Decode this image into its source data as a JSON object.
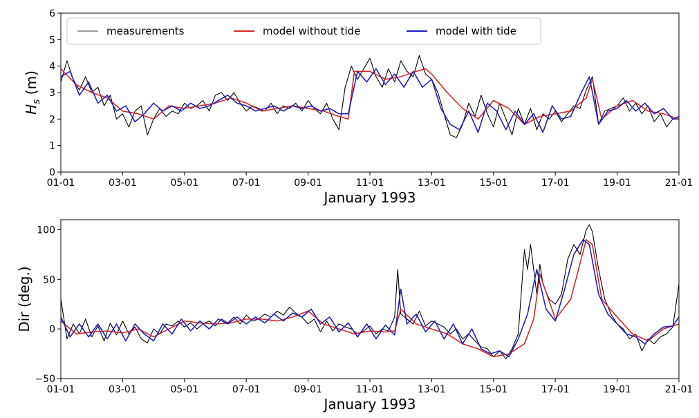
{
  "chart_data": [
    {
      "type": "line",
      "id": "hs",
      "xlabel": "January 1993",
      "ylabel_main": "H",
      "ylabel_sub": "s",
      "ylabel_unit": " (m)",
      "x_unit": "day",
      "x_ticks": [
        1,
        3,
        5,
        7,
        9,
        11,
        13,
        15,
        17,
        19,
        21
      ],
      "x_tick_labels": [
        "01-01",
        "03-01",
        "05-01",
        "07-01",
        "09-01",
        "11-01",
        "13-01",
        "15-01",
        "17-01",
        "19-01",
        "21-01"
      ],
      "xlim": [
        1,
        21
      ],
      "ylim": [
        0,
        6
      ],
      "y_ticks": [
        0,
        1,
        2,
        3,
        4,
        5,
        6
      ],
      "y_tick_labels": [
        "0",
        "1",
        "2",
        "3",
        "4",
        "5",
        "6"
      ],
      "legend": {
        "placement": "top",
        "entries": [
          "measurements",
          "model without tide",
          "model with tide"
        ]
      },
      "series": [
        {
          "name": "measurements",
          "color": "#000000",
          "x": [
            1,
            1.2,
            1.4,
            1.6,
            1.8,
            2,
            2.2,
            2.4,
            2.6,
            2.8,
            3,
            3.2,
            3.4,
            3.6,
            3.8,
            4,
            4.2,
            4.4,
            4.6,
            4.8,
            5,
            5.2,
            5.4,
            5.6,
            5.8,
            6,
            6.2,
            6.4,
            6.6,
            6.8,
            7,
            7.2,
            7.4,
            7.6,
            7.8,
            8,
            8.2,
            8.4,
            8.6,
            8.8,
            9,
            9.2,
            9.4,
            9.6,
            9.8,
            10,
            10.2,
            10.4,
            10.6,
            10.8,
            11,
            11.2,
            11.4,
            11.6,
            11.8,
            12,
            12.2,
            12.4,
            12.6,
            12.8,
            13,
            13.2,
            13.4,
            13.6,
            13.8,
            14,
            14.2,
            14.4,
            14.6,
            14.8,
            15,
            15.2,
            15.4,
            15.6,
            15.8,
            16,
            16.2,
            16.4,
            16.6,
            16.8,
            17,
            17.2,
            17.4,
            17.6,
            17.8,
            18,
            18.2,
            18.4,
            18.6,
            18.8,
            19,
            19.2,
            19.4,
            19.6,
            19.8,
            20,
            20.2,
            20.4,
            20.6,
            20.8,
            21
          ],
          "values": [
            3.4,
            4.2,
            3.5,
            3.1,
            3.6,
            3.0,
            3.2,
            2.5,
            2.9,
            2.0,
            2.2,
            1.7,
            2.3,
            2.5,
            1.4,
            2.0,
            2.4,
            2.1,
            2.3,
            2.2,
            2.6,
            2.4,
            2.5,
            2.7,
            2.3,
            2.9,
            3.0,
            2.7,
            3.0,
            2.6,
            2.3,
            2.5,
            2.4,
            2.3,
            2.6,
            2.2,
            2.5,
            2.4,
            2.6,
            2.3,
            2.7,
            2.4,
            2.2,
            2.6,
            2.0,
            1.6,
            3.2,
            4.0,
            3.5,
            3.9,
            4.3,
            3.6,
            3.2,
            3.9,
            3.4,
            4.2,
            3.8,
            3.6,
            4.4,
            3.7,
            3.5,
            3.0,
            2.2,
            1.4,
            1.3,
            1.8,
            2.6,
            2.1,
            2.9,
            2.2,
            1.7,
            2.6,
            2.0,
            1.4,
            2.4,
            1.8,
            2.4,
            1.6,
            2.2,
            2.0,
            2.3,
            1.9,
            2.2,
            2.5,
            2.4,
            3.1,
            3.6,
            1.8,
            2.3,
            2.4,
            2.5,
            2.8,
            2.3,
            2.6,
            2.2,
            2.5,
            1.9,
            2.2,
            1.7,
            2.0,
            2.0
          ]
        },
        {
          "name": "model without tide",
          "color": "#d62728",
          "x": [
            1,
            1.5,
            2,
            2.5,
            3,
            3.5,
            4,
            4.5,
            5,
            5.5,
            6,
            6.5,
            7,
            7.5,
            8,
            8.5,
            9,
            9.5,
            10,
            10.3,
            10.5,
            11,
            11.5,
            12,
            12.5,
            12.8,
            13,
            13.5,
            14,
            14.5,
            15,
            15.5,
            16,
            16.5,
            17,
            17.5,
            18,
            18.2,
            18.5,
            19,
            19.5,
            20,
            20.5,
            21
          ],
          "values": [
            3.9,
            3.3,
            3.0,
            2.8,
            2.3,
            2.2,
            2.0,
            2.5,
            2.4,
            2.5,
            2.6,
            2.8,
            2.6,
            2.3,
            2.4,
            2.5,
            2.4,
            2.3,
            2.1,
            2.0,
            3.8,
            3.8,
            3.5,
            3.6,
            3.8,
            3.9,
            3.7,
            3.0,
            2.4,
            2.0,
            2.7,
            2.4,
            1.8,
            2.1,
            2.2,
            2.3,
            2.8,
            3.5,
            2.0,
            2.5,
            2.7,
            2.3,
            2.2,
            2.0
          ]
        },
        {
          "name": "model with tide",
          "color": "#1f1fbf",
          "x": [
            1,
            1.3,
            1.6,
            1.9,
            2.2,
            2.5,
            2.8,
            3.1,
            3.4,
            3.7,
            4,
            4.3,
            4.6,
            4.9,
            5.2,
            5.5,
            5.8,
            6.1,
            6.4,
            6.7,
            7,
            7.3,
            7.6,
            7.9,
            8.2,
            8.5,
            8.8,
            9.1,
            9.4,
            9.7,
            10,
            10.3,
            10.6,
            10.9,
            11.2,
            11.5,
            11.8,
            12.1,
            12.4,
            12.7,
            13,
            13.3,
            13.6,
            13.9,
            14.2,
            14.5,
            14.8,
            15.1,
            15.4,
            15.7,
            16,
            16.3,
            16.6,
            16.9,
            17.2,
            17.5,
            17.8,
            18.1,
            18.4,
            18.7,
            19,
            19.3,
            19.6,
            19.9,
            20.2,
            20.5,
            20.8,
            21
          ],
          "values": [
            3.6,
            3.8,
            2.9,
            3.4,
            2.6,
            2.9,
            2.3,
            2.5,
            1.9,
            2.2,
            2.6,
            2.3,
            2.5,
            2.3,
            2.6,
            2.4,
            2.5,
            2.7,
            2.9,
            2.6,
            2.5,
            2.3,
            2.4,
            2.5,
            2.3,
            2.5,
            2.4,
            2.5,
            2.3,
            2.4,
            2.2,
            2.2,
            3.8,
            3.4,
            3.9,
            3.3,
            3.7,
            3.2,
            3.8,
            3.2,
            3.5,
            2.4,
            1.8,
            1.6,
            2.3,
            1.5,
            2.6,
            2.3,
            1.6,
            2.3,
            1.8,
            2.2,
            1.5,
            2.5,
            2.0,
            2.1,
            2.9,
            3.6,
            1.8,
            2.3,
            2.4,
            2.7,
            2.3,
            2.6,
            2.2,
            2.4,
            2.0,
            2.1
          ]
        }
      ]
    },
    {
      "type": "line",
      "id": "dir",
      "xlabel": "January 1993",
      "ylabel": "Dir (deg.)",
      "x_unit": "day",
      "x_ticks": [
        1,
        3,
        5,
        7,
        9,
        11,
        13,
        15,
        17,
        19,
        21
      ],
      "x_tick_labels": [
        "01-01",
        "03-01",
        "05-01",
        "07-01",
        "09-01",
        "11-01",
        "13-01",
        "15-01",
        "17-01",
        "19-01",
        "21-01"
      ],
      "xlim": [
        1,
        21
      ],
      "ylim": [
        -50,
        110
      ],
      "y_ticks": [
        -50,
        0,
        50,
        100
      ],
      "y_tick_labels": [
        "−50",
        "0",
        "50",
        "100"
      ],
      "series": [
        {
          "name": "measurements",
          "color": "#000000",
          "x": [
            1,
            1.2,
            1.4,
            1.6,
            1.8,
            2,
            2.2,
            2.4,
            2.6,
            2.8,
            3,
            3.2,
            3.4,
            3.6,
            3.8,
            4,
            4.2,
            4.4,
            4.6,
            4.8,
            5,
            5.2,
            5.4,
            5.6,
            5.8,
            6,
            6.2,
            6.4,
            6.6,
            6.8,
            7,
            7.2,
            7.4,
            7.6,
            7.8,
            8,
            8.2,
            8.4,
            8.6,
            8.8,
            9,
            9.2,
            9.4,
            9.6,
            9.8,
            10,
            10.2,
            10.4,
            10.6,
            10.8,
            11,
            11.2,
            11.4,
            11.6,
            11.8,
            11.9,
            12,
            12.2,
            12.4,
            12.6,
            12.8,
            13,
            13.2,
            13.4,
            13.6,
            13.8,
            14,
            14.2,
            14.4,
            14.6,
            14.8,
            15,
            15.2,
            15.4,
            15.6,
            15.8,
            16,
            16.1,
            16.2,
            16.4,
            16.5,
            16.6,
            16.8,
            17,
            17.2,
            17.4,
            17.6,
            17.8,
            18,
            18.1,
            18.2,
            18.4,
            18.6,
            18.8,
            19,
            19.2,
            19.4,
            19.6,
            19.8,
            20,
            20.2,
            20.4,
            20.6,
            20.8,
            21
          ],
          "values": [
            30,
            -10,
            5,
            -5,
            10,
            -8,
            3,
            -12,
            6,
            -6,
            8,
            -5,
            2,
            -10,
            -14,
            0,
            -5,
            5,
            3,
            8,
            2,
            6,
            0,
            5,
            8,
            3,
            10,
            6,
            12,
            5,
            14,
            8,
            10,
            15,
            12,
            18,
            14,
            22,
            16,
            12,
            5,
            10,
            -3,
            8,
            -2,
            5,
            2,
            0,
            -5,
            -2,
            3,
            -5,
            0,
            -2,
            12,
            60,
            15,
            10,
            5,
            18,
            3,
            8,
            5,
            2,
            -5,
            0,
            -10,
            -5,
            -12,
            -18,
            -20,
            -28,
            -22,
            -30,
            -20,
            -5,
            80,
            60,
            85,
            35,
            65,
            45,
            30,
            25,
            35,
            70,
            85,
            75,
            100,
            105,
            98,
            60,
            30,
            15,
            5,
            0,
            -10,
            -5,
            -22,
            -10,
            -15,
            -8,
            -5,
            2,
            45
          ]
        },
        {
          "name": "model without tide",
          "color": "#d62728",
          "x": [
            1,
            1.5,
            2,
            2.5,
            3,
            3.5,
            4,
            4.5,
            5,
            5.5,
            6,
            6.5,
            7,
            7.5,
            8,
            8.5,
            9,
            9.5,
            10,
            10.5,
            11,
            11.5,
            11.8,
            12,
            12.5,
            13,
            13.5,
            14,
            14.5,
            15,
            15.5,
            16,
            16.3,
            16.5,
            17,
            17.5,
            18,
            18.2,
            18.5,
            19,
            19.5,
            20,
            20.5,
            21
          ],
          "values": [
            8,
            -5,
            -3,
            -2,
            -4,
            0,
            -8,
            0,
            8,
            6,
            5,
            6,
            10,
            10,
            8,
            12,
            18,
            5,
            0,
            -5,
            -2,
            -3,
            -2,
            20,
            5,
            0,
            -5,
            -15,
            -20,
            -28,
            -25,
            -15,
            10,
            55,
            10,
            30,
            90,
            85,
            30,
            12,
            -5,
            -12,
            0,
            5
          ]
        },
        {
          "name": "model with tide",
          "color": "#1f1fbf",
          "x": [
            1,
            1.3,
            1.6,
            1.9,
            2.2,
            2.5,
            2.8,
            3.1,
            3.4,
            3.7,
            4,
            4.3,
            4.6,
            4.9,
            5.2,
            5.5,
            5.8,
            6.1,
            6.4,
            6.7,
            7,
            7.3,
            7.6,
            7.9,
            8.2,
            8.5,
            8.8,
            9.1,
            9.4,
            9.7,
            10,
            10.3,
            10.6,
            10.9,
            11.2,
            11.5,
            11.8,
            12,
            12.2,
            12.5,
            12.8,
            13.1,
            13.4,
            13.7,
            14,
            14.3,
            14.6,
            14.9,
            15.2,
            15.5,
            15.8,
            16.1,
            16.4,
            16.7,
            17,
            17.3,
            17.6,
            17.9,
            18.1,
            18.4,
            18.7,
            19,
            19.3,
            19.6,
            19.9,
            20.2,
            20.5,
            20.8,
            21
          ],
          "values": [
            12,
            -8,
            5,
            -8,
            5,
            -10,
            5,
            -12,
            5,
            -5,
            -12,
            5,
            -5,
            10,
            -2,
            8,
            0,
            10,
            5,
            12,
            5,
            12,
            6,
            15,
            8,
            16,
            12,
            20,
            5,
            12,
            -3,
            6,
            -8,
            5,
            -10,
            4,
            -6,
            40,
            5,
            15,
            -3,
            8,
            -10,
            5,
            -15,
            0,
            -20,
            -25,
            -22,
            -28,
            -10,
            15,
            60,
            20,
            8,
            40,
            75,
            90,
            85,
            35,
            15,
            5,
            -5,
            -8,
            -15,
            -5,
            2,
            3,
            12
          ]
        }
      ]
    }
  ]
}
